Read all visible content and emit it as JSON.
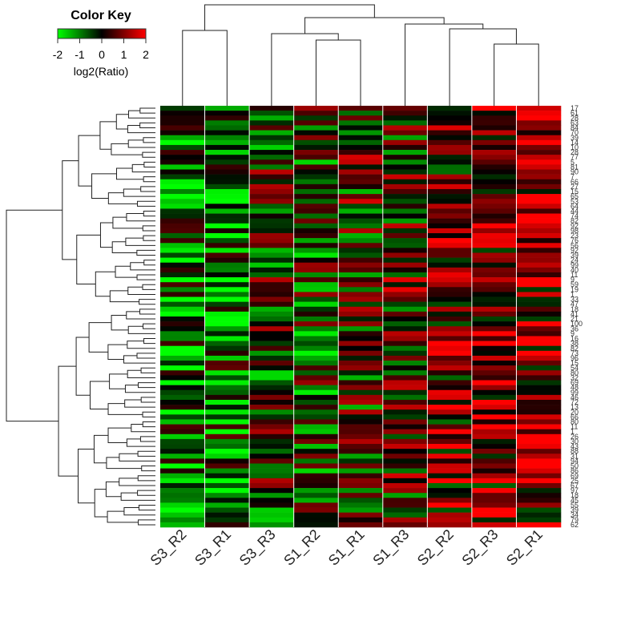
{
  "chart_data": {
    "type": "heatmap",
    "title": "",
    "color_key": {
      "title": "Color Key",
      "label": "log2(Ratio)",
      "ticks": [
        "-2",
        "-1",
        "0",
        "1",
        "2"
      ],
      "range": [
        -2,
        2
      ],
      "colors": {
        "low": "#00ff00",
        "mid": "#000000",
        "high": "#ff0000"
      }
    },
    "columns": [
      "S3_R2",
      "S3_R1",
      "S3_R3",
      "S1_R2",
      "S1_R1",
      "S1_R3",
      "S2_R2",
      "S2_R3",
      "S2_R1"
    ],
    "row_labels": [
      "17",
      "61",
      "28",
      "63",
      "84",
      "70",
      "39",
      "14",
      "10",
      "28",
      "77",
      "5",
      "81",
      "90",
      "7",
      "66",
      "27",
      "15",
      "65",
      "53",
      "64",
      "44",
      "74",
      "82",
      "92",
      "98",
      "23",
      "76",
      "56",
      "92",
      "39",
      "24",
      "99",
      "40",
      "11",
      "9",
      "59",
      "19",
      "1",
      "33",
      "47",
      "18",
      "41",
      "21",
      "100",
      "36",
      "9",
      "16",
      "38",
      "82",
      "73",
      "96",
      "15",
      "54",
      "80",
      "32",
      "69",
      "48",
      "99",
      "46",
      "72",
      "13",
      "20",
      "66",
      "80",
      "11",
      "1",
      "26",
      "30",
      "43",
      "88",
      "31",
      "94",
      "50",
      "86",
      "69",
      "25",
      "67",
      "97",
      "18",
      "45",
      "55",
      "39",
      "34",
      "79",
      "62"
    ],
    "grid": false,
    "legend": "top-left"
  }
}
